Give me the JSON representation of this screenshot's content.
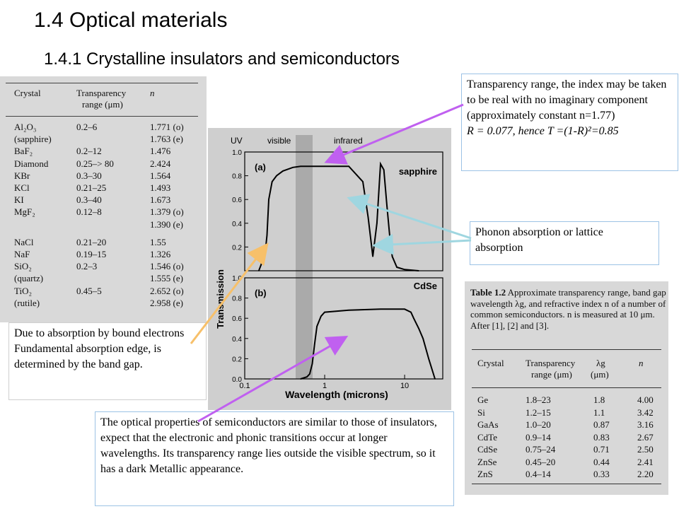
{
  "title": "1.4  Optical materials",
  "subtitle": "1.4.1  Crystalline insulators and semiconductors",
  "table_left": {
    "headers": {
      "crystal": "Crystal",
      "range_line1": "Transparency",
      "range_line2": "range (μm)",
      "n": "n"
    },
    "rows": [
      {
        "crystal": "Al₂O₃",
        "range": "0.2–6",
        "n": "1.771 (o)"
      },
      {
        "crystal": "(sapphire)",
        "range": "",
        "n": "1.763 (e)"
      },
      {
        "crystal": "BaF₂",
        "range": "0.2–12",
        "n": "1.476"
      },
      {
        "crystal": "Diamond",
        "range": "0.25–> 80",
        "n": "2.424"
      },
      {
        "crystal": "KBr",
        "range": "0.3–30",
        "n": "1.564"
      },
      {
        "crystal": "KCl",
        "range": "0.21–25",
        "n": "1.493"
      },
      {
        "crystal": "KI",
        "range": "0.3–40",
        "n": "1.673"
      },
      {
        "crystal": "MgF₂",
        "range": "0.12–8",
        "n": "1.379 (o)"
      },
      {
        "crystal": "",
        "range": "",
        "n": "1.390 (e)"
      },
      {
        "crystal": "NaCl",
        "range": "0.21–20",
        "n": "1.55"
      },
      {
        "crystal": "NaF",
        "range": "0.19–15",
        "n": "1.326"
      },
      {
        "crystal": "SiO₂",
        "range": "0.2–3",
        "n": "1.546 (o)"
      },
      {
        "crystal": "(quartz)",
        "range": "",
        "n": "1.555 (e)"
      },
      {
        "crystal": "TiO₂",
        "range": "0.45–5",
        "n": "2.652 (o)"
      },
      {
        "crystal": "(rutile)",
        "range": "",
        "n": "2.958 (e)"
      }
    ]
  },
  "table_right": {
    "caption_bold": "Table 1.2",
    "caption": "Approximate transparency range, band gap wavelength λg, and refractive index n of a number of common semiconductors. n is measured at 10 μm. After [1], [2] and [3].",
    "headers": {
      "crystal": "Crystal",
      "range_line1": "Transparency",
      "range_line2": "range (μm)",
      "lambda_line1": "λg",
      "lambda_line2": "(μm)",
      "n": "n"
    },
    "rows": [
      {
        "crystal": "Ge",
        "range": "1.8–23",
        "lambda": "1.8",
        "n": "4.00"
      },
      {
        "crystal": "Si",
        "range": "1.2–15",
        "lambda": "1.1",
        "n": "3.42"
      },
      {
        "crystal": "GaAs",
        "range": "1.0–20",
        "lambda": "0.87",
        "n": "3.16"
      },
      {
        "crystal": "CdTe",
        "range": "0.9–14",
        "lambda": "0.83",
        "n": "2.67"
      },
      {
        "crystal": "CdSe",
        "range": "0.75–24",
        "lambda": "0.71",
        "n": "2.50"
      },
      {
        "crystal": "ZnSe",
        "range": "0.45–20",
        "lambda": "0.44",
        "n": "2.41"
      },
      {
        "crystal": "ZnS",
        "range": "0.4–14",
        "lambda": "0.33",
        "n": "2.20"
      }
    ]
  },
  "chart_data": {
    "type": "line",
    "band_labels": [
      "UV",
      "visible",
      "infrared"
    ],
    "xlabel": "Wavelength (microns)",
    "ylabel": "Transmission",
    "x_scale": "log",
    "xlim": [
      0.1,
      30
    ],
    "x_ticks": [
      "0.1",
      "1",
      "10"
    ],
    "panels": [
      {
        "label": "(a)",
        "name": "sapphire",
        "ylim": [
          0,
          1.0
        ],
        "y_ticks": [
          "0.0",
          "0.2",
          "0.4",
          "0.6",
          "0.8",
          "1.0"
        ],
        "x": [
          0.15,
          0.16,
          0.17,
          0.18,
          0.19,
          0.2,
          0.22,
          0.25,
          0.3,
          0.4,
          0.5,
          1,
          2,
          3,
          3.5,
          4,
          4.5,
          5,
          5.5,
          6,
          6.5,
          7,
          8,
          10,
          15
        ],
        "y": [
          0.0,
          0.05,
          0.1,
          0.15,
          0.3,
          0.6,
          0.75,
          0.8,
          0.84,
          0.87,
          0.88,
          0.88,
          0.88,
          0.75,
          0.45,
          0.12,
          0.4,
          0.9,
          0.85,
          0.55,
          0.3,
          0.12,
          0.03,
          0.01,
          0.0
        ]
      },
      {
        "label": "(b)",
        "name": "CdSe",
        "ylim": [
          0,
          1.0
        ],
        "y_ticks": [
          "0.0",
          "0.2",
          "0.4",
          "0.6",
          "0.8",
          "1.0"
        ],
        "x": [
          0.5,
          0.6,
          0.65,
          0.7,
          0.75,
          0.8,
          0.9,
          1,
          2,
          5,
          10,
          12,
          13,
          15,
          17,
          20,
          24
        ],
        "y": [
          0.0,
          0.02,
          0.05,
          0.15,
          0.35,
          0.52,
          0.62,
          0.66,
          0.68,
          0.69,
          0.69,
          0.66,
          0.6,
          0.5,
          0.4,
          0.2,
          0.0
        ]
      }
    ]
  },
  "notes": {
    "transparency": "Transparency range, the index may be taken to be real with no imaginary component (approximately constant n=1.77)",
    "transparency_formula": "R = 0.077, hence T =(1-R)²=0.85",
    "phonon": "Phonon absorption or lattice absorption",
    "bound_line1": "Due to absorption by bound electrons",
    "bound_line2": "Fundamental absorption edge, is determined by the band gap.",
    "semiconductors": "The optical properties of semiconductors are similar to those of insulators, expect that the electronic and phonic transitions occur at longer wavelengths. Its transparency range lies outside the visible spectrum, so it has a dark Metallic appearance."
  },
  "colors": {
    "arrow_purple": "#c060f0",
    "arrow_cyan": "#9fd6e0",
    "arrow_orange": "#f7c06a",
    "note_border": "#9cc2e5"
  }
}
